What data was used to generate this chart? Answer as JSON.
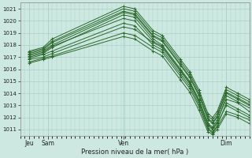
{
  "xlabel": "Pression niveau de la mer( hPa )",
  "bg_color": "#cce8e0",
  "grid_color": "#aad0c8",
  "line_color": "#2d6a2d",
  "ylim": [
    1010.5,
    1021.5
  ],
  "yticks": [
    1011,
    1012,
    1013,
    1014,
    1015,
    1016,
    1017,
    1018,
    1019,
    1020,
    1021
  ],
  "xlim": [
    0,
    1
  ],
  "x_tick_positions": [
    0.04,
    0.12,
    0.45,
    0.9
  ],
  "x_tick_labels": [
    "Jeu",
    "Sam",
    "Ven",
    "Dim"
  ],
  "lines": [
    [
      0.04,
      1017.0,
      0.1,
      1017.3,
      0.14,
      1017.8,
      0.45,
      1020.5,
      0.5,
      1020.3,
      0.58,
      1018.5,
      0.62,
      1018.0,
      0.7,
      1016.0,
      0.74,
      1015.0,
      0.78,
      1013.5,
      0.82,
      1011.5,
      0.84,
      1011.2,
      0.86,
      1011.8,
      0.9,
      1013.5,
      0.95,
      1013.2,
      1.0,
      1012.5
    ],
    [
      0.04,
      1017.2,
      0.1,
      1017.5,
      0.14,
      1018.0,
      0.45,
      1020.7,
      0.5,
      1020.5,
      0.58,
      1018.7,
      0.62,
      1018.3,
      0.7,
      1016.3,
      0.74,
      1015.3,
      0.78,
      1013.8,
      0.82,
      1011.8,
      0.84,
      1011.5,
      0.86,
      1012.0,
      0.9,
      1014.0,
      0.95,
      1013.5,
      1.0,
      1013.0
    ],
    [
      0.04,
      1017.4,
      0.1,
      1017.7,
      0.14,
      1018.3,
      0.45,
      1021.0,
      0.5,
      1020.8,
      0.58,
      1019.0,
      0.62,
      1018.6,
      0.7,
      1016.6,
      0.74,
      1015.6,
      0.78,
      1014.1,
      0.82,
      1012.1,
      0.84,
      1011.8,
      0.86,
      1012.3,
      0.9,
      1014.3,
      0.95,
      1013.8,
      1.0,
      1013.3
    ],
    [
      0.04,
      1016.8,
      0.1,
      1017.0,
      0.14,
      1017.3,
      0.45,
      1019.5,
      0.5,
      1019.3,
      0.58,
      1018.2,
      0.62,
      1017.8,
      0.7,
      1015.8,
      0.74,
      1014.8,
      0.78,
      1013.3,
      0.82,
      1011.3,
      0.84,
      1011.0,
      0.86,
      1011.5,
      0.9,
      1013.0,
      0.95,
      1012.5,
      1.0,
      1012.0
    ],
    [
      0.04,
      1016.6,
      0.1,
      1016.9,
      0.14,
      1017.1,
      0.45,
      1019.0,
      0.5,
      1018.8,
      0.58,
      1017.8,
      0.62,
      1017.4,
      0.7,
      1015.4,
      0.74,
      1014.4,
      0.78,
      1012.9,
      0.82,
      1011.0,
      0.84,
      1010.7,
      0.86,
      1011.2,
      0.9,
      1012.5,
      0.95,
      1012.2,
      1.0,
      1011.8
    ],
    [
      0.04,
      1017.1,
      0.1,
      1017.4,
      0.14,
      1017.9,
      0.45,
      1020.2,
      0.5,
      1020.0,
      0.58,
      1018.3,
      0.62,
      1017.9,
      0.7,
      1015.9,
      0.74,
      1014.9,
      0.78,
      1013.4,
      0.82,
      1011.4,
      0.84,
      1011.1,
      0.86,
      1011.6,
      0.9,
      1013.8,
      0.95,
      1013.3,
      1.0,
      1012.8
    ],
    [
      0.04,
      1017.3,
      0.1,
      1017.6,
      0.14,
      1018.2,
      0.45,
      1020.8,
      0.5,
      1020.6,
      0.58,
      1018.8,
      0.62,
      1018.4,
      0.7,
      1016.4,
      0.74,
      1015.4,
      0.78,
      1013.9,
      0.82,
      1011.9,
      0.84,
      1011.6,
      0.86,
      1012.1,
      0.9,
      1014.1,
      0.95,
      1013.6,
      1.0,
      1013.1
    ],
    [
      0.04,
      1017.5,
      0.1,
      1017.8,
      0.14,
      1018.5,
      0.45,
      1021.2,
      0.5,
      1021.0,
      0.58,
      1019.2,
      0.62,
      1018.8,
      0.7,
      1016.8,
      0.74,
      1015.8,
      0.78,
      1014.3,
      0.82,
      1012.3,
      0.84,
      1012.0,
      0.86,
      1012.5,
      0.9,
      1014.5,
      0.95,
      1014.0,
      1.0,
      1013.5
    ],
    [
      0.04,
      1016.5,
      0.1,
      1016.8,
      0.14,
      1017.0,
      0.45,
      1018.7,
      0.5,
      1018.5,
      0.58,
      1017.5,
      0.62,
      1017.1,
      0.7,
      1015.1,
      0.74,
      1014.1,
      0.78,
      1012.6,
      0.82,
      1010.8,
      0.84,
      1010.6,
      0.86,
      1011.0,
      0.9,
      1012.3,
      0.95,
      1012.0,
      1.0,
      1011.5
    ],
    [
      0.04,
      1016.9,
      0.1,
      1017.2,
      0.14,
      1017.5,
      0.45,
      1019.8,
      0.5,
      1019.6,
      0.58,
      1018.0,
      0.62,
      1017.6,
      0.7,
      1015.6,
      0.74,
      1014.6,
      0.78,
      1013.1,
      0.82,
      1011.1,
      0.84,
      1010.8,
      0.86,
      1011.3,
      0.9,
      1013.2,
      0.95,
      1012.7,
      1.0,
      1012.2
    ]
  ]
}
